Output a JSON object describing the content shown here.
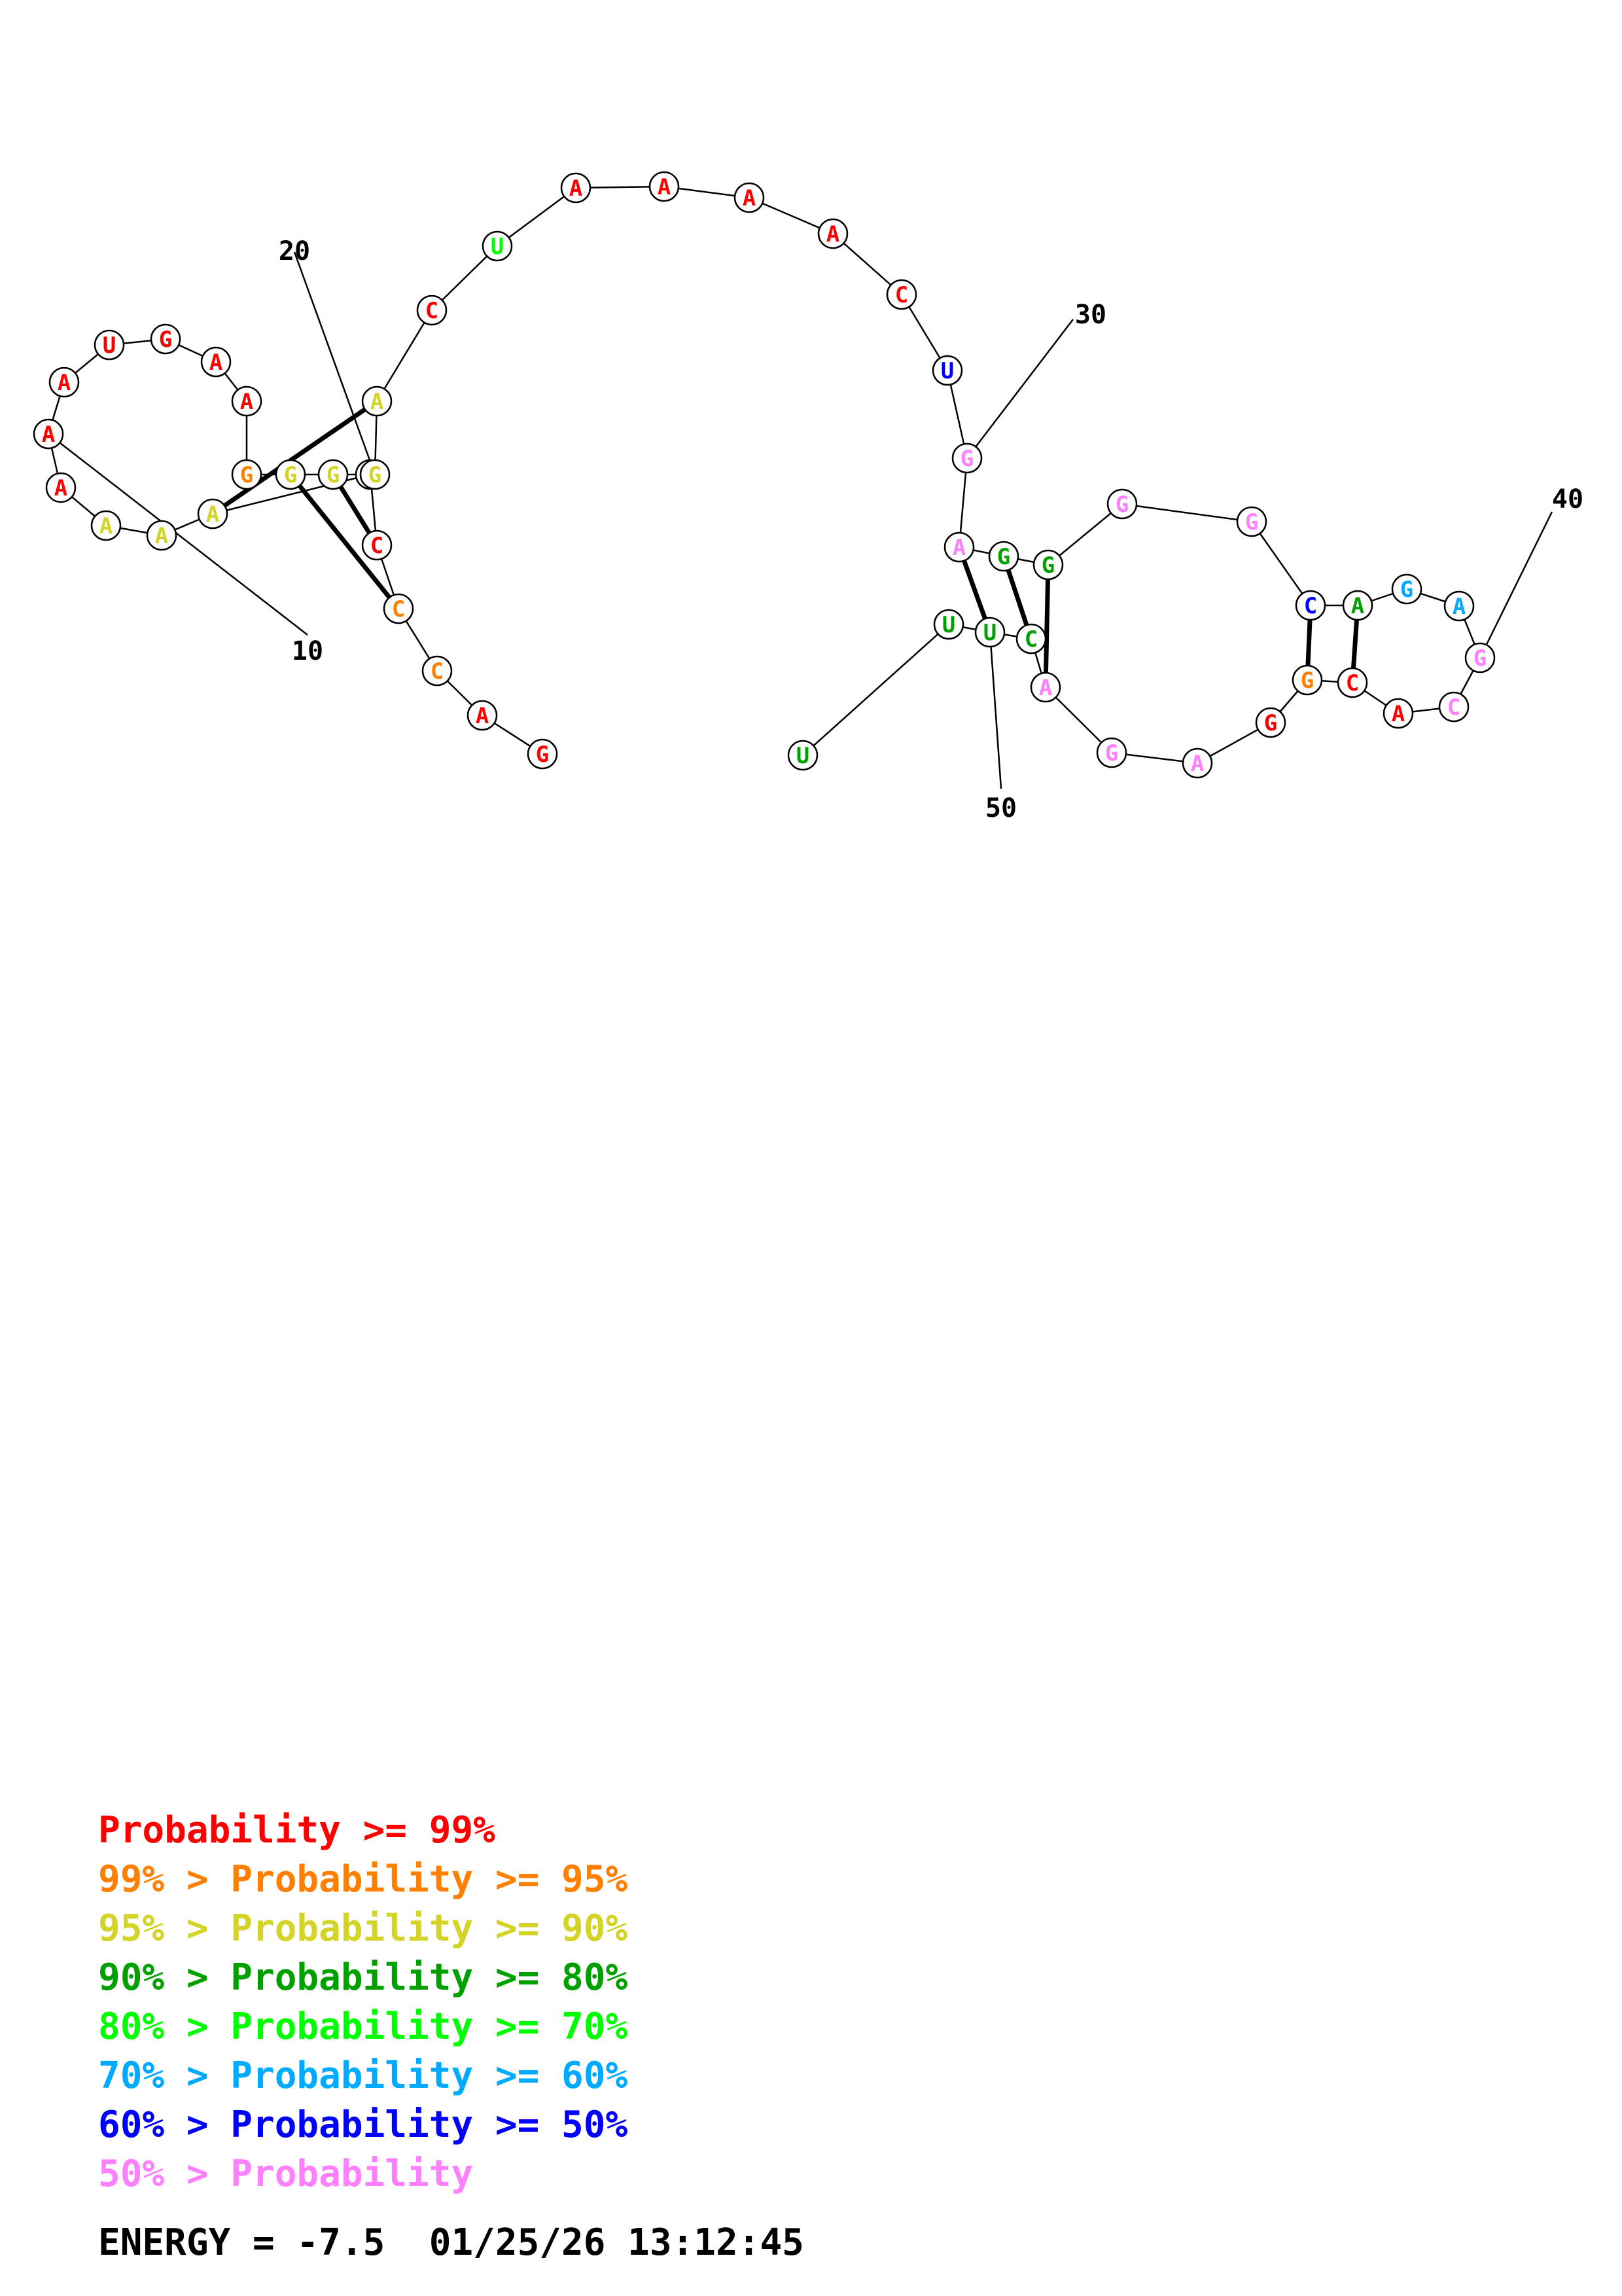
{
  "structure": {
    "sequence": [
      "G",
      "A",
      "C",
      "C",
      "C",
      "C",
      "A",
      "A",
      "A",
      "A",
      "A",
      "A",
      "U",
      "G",
      "A",
      "A",
      "G",
      "G",
      "G",
      "G",
      "A",
      "C",
      "U",
      "A",
      "A",
      "A",
      "A",
      "C",
      "U",
      "G",
      "A",
      "G",
      "G",
      "G",
      "G",
      "C",
      "A",
      "G",
      "A",
      "G",
      "C",
      "A",
      "C",
      "G",
      "G",
      "A",
      "G",
      "A",
      "C",
      "U",
      "U",
      "U"
    ],
    "probability_class": [
      0,
      0,
      1,
      1,
      0,
      2,
      2,
      2,
      2,
      0,
      0,
      0,
      0,
      0,
      0,
      0,
      1,
      2,
      2,
      2,
      2,
      0,
      4,
      0,
      0,
      0,
      0,
      0,
      6,
      7,
      7,
      3,
      3,
      7,
      7,
      6,
      3,
      5,
      5,
      7,
      7,
      0,
      0,
      1,
      0,
      7,
      7,
      7,
      3,
      3,
      3,
      3
    ],
    "pairs": [
      [
        3,
        17
      ],
      [
        4,
        18
      ],
      [
        5,
        19
      ],
      [
        6,
        20
      ],
      [
        30,
        49
      ],
      [
        31,
        48
      ],
      [
        32,
        47
      ],
      [
        35,
        43
      ],
      [
        36,
        42
      ]
    ],
    "position_labels": [
      {
        "label": "10",
        "index": 10
      },
      {
        "label": "20",
        "index": 19
      },
      {
        "label": "30",
        "index": 29
      },
      {
        "label": "40",
        "index": 39
      },
      {
        "label": "50",
        "index": 49
      }
    ]
  },
  "legend": {
    "colors": [
      "#ff0000",
      "#ff8000",
      "#d4d428",
      "#00a000",
      "#00ff00",
      "#00aaff",
      "#0000ff",
      "#ff80ff"
    ],
    "lines": [
      "      Probability >= 99%",
      "99% > Probability >= 95%",
      "95% > Probability >= 90%",
      "90% > Probability >= 80%",
      "80% > Probability >= 70%",
      "70% > Probability >= 60%",
      "60% > Probability >= 50%",
      "50% > Probability"
    ]
  },
  "energy_line": "ENERGY = -7.5  01/25/26 13:12:45"
}
